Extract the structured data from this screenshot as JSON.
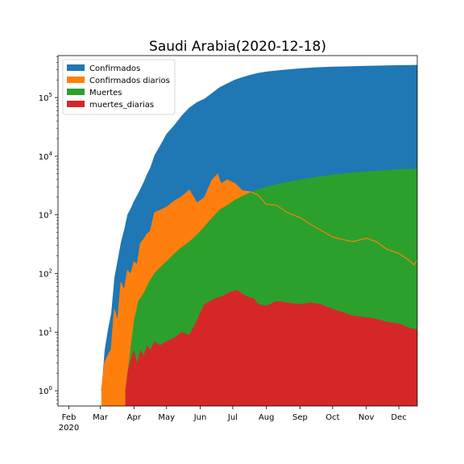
{
  "chart_data": {
    "type": "area",
    "title": "Saudi Arabia(2020-12-18)",
    "xlabel": "",
    "ylabel": "",
    "yscale": "log",
    "ylim": [
      0.55,
      520000
    ],
    "xlim": [
      "2020-01-22",
      "2020-12-18"
    ],
    "x_ticks": [
      {
        "date": "2020-02-01",
        "label": "Feb",
        "sublabel": "2020"
      },
      {
        "date": "2020-03-01",
        "label": "Mar",
        "sublabel": ""
      },
      {
        "date": "2020-04-01",
        "label": "Apr",
        "sublabel": ""
      },
      {
        "date": "2020-05-01",
        "label": "May",
        "sublabel": ""
      },
      {
        "date": "2020-06-01",
        "label": "Jun",
        "sublabel": ""
      },
      {
        "date": "2020-07-01",
        "label": "Jul",
        "sublabel": ""
      },
      {
        "date": "2020-08-01",
        "label": "Aug",
        "sublabel": ""
      },
      {
        "date": "2020-09-01",
        "label": "Sep",
        "sublabel": ""
      },
      {
        "date": "2020-10-01",
        "label": "Oct",
        "sublabel": ""
      },
      {
        "date": "2020-11-01",
        "label": "Nov",
        "sublabel": ""
      },
      {
        "date": "2020-12-01",
        "label": "Dec",
        "sublabel": ""
      }
    ],
    "y_ticks": [
      {
        "value": 1,
        "base": "10",
        "exp": "0"
      },
      {
        "value": 10,
        "base": "10",
        "exp": "1"
      },
      {
        "value": 100,
        "base": "10",
        "exp": "2"
      },
      {
        "value": 1000,
        "base": "10",
        "exp": "3"
      },
      {
        "value": 10000,
        "base": "10",
        "exp": "4"
      },
      {
        "value": 100000,
        "base": "10",
        "exp": "5"
      }
    ],
    "legend_position": "top-left",
    "series": [
      {
        "name": "Confirmados",
        "color": "#1f77b4",
        "style": "area",
        "points": [
          [
            "2020-03-02",
            1
          ],
          [
            "2020-03-05",
            5
          ],
          [
            "2020-03-08",
            11
          ],
          [
            "2020-03-11",
            21
          ],
          [
            "2020-03-14",
            86
          ],
          [
            "2020-03-17",
            171
          ],
          [
            "2020-03-20",
            344
          ],
          [
            "2020-03-23",
            562
          ],
          [
            "2020-03-26",
            1012
          ],
          [
            "2020-03-29",
            1299
          ],
          [
            "2020-04-01",
            1720
          ],
          [
            "2020-04-04",
            2179
          ],
          [
            "2020-04-07",
            2795
          ],
          [
            "2020-04-10",
            3651
          ],
          [
            "2020-04-13",
            4934
          ],
          [
            "2020-04-16",
            6380
          ],
          [
            "2020-04-20",
            10484
          ],
          [
            "2020-04-25",
            15102
          ],
          [
            "2020-05-01",
            24097
          ],
          [
            "2020-05-08",
            33731
          ],
          [
            "2020-05-15",
            49176
          ],
          [
            "2020-05-22",
            67719
          ],
          [
            "2020-05-29",
            83384
          ],
          [
            "2020-06-05",
            95748
          ],
          [
            "2020-06-12",
            119942
          ],
          [
            "2020-06-19",
            150292
          ],
          [
            "2020-06-26",
            174577
          ],
          [
            "2020-07-03",
            201801
          ],
          [
            "2020-07-10",
            223327
          ],
          [
            "2020-07-17",
            243238
          ],
          [
            "2020-07-24",
            262772
          ],
          [
            "2020-08-01",
            277000
          ],
          [
            "2020-08-15",
            295000
          ],
          [
            "2020-09-01",
            315000
          ],
          [
            "2020-09-15",
            327000
          ],
          [
            "2020-10-01",
            336000
          ],
          [
            "2020-10-15",
            341000
          ],
          [
            "2020-11-01",
            347000
          ],
          [
            "2020-11-15",
            352000
          ],
          [
            "2020-12-01",
            357000
          ],
          [
            "2020-12-18",
            360000
          ]
        ]
      },
      {
        "name": "Confirmados diarios",
        "color": "#ff7f0e",
        "style": "area",
        "points": [
          [
            "2020-03-02",
            1
          ],
          [
            "2020-03-05",
            3
          ],
          [
            "2020-03-08",
            4
          ],
          [
            "2020-03-11",
            5
          ],
          [
            "2020-03-14",
            24
          ],
          [
            "2020-03-17",
            15
          ],
          [
            "2020-03-20",
            70
          ],
          [
            "2020-03-23",
            51
          ],
          [
            "2020-03-26",
            112
          ],
          [
            "2020-03-29",
            96
          ],
          [
            "2020-04-01",
            157
          ],
          [
            "2020-04-04",
            140
          ],
          [
            "2020-04-07",
            327
          ],
          [
            "2020-04-10",
            382
          ],
          [
            "2020-04-13",
            472
          ],
          [
            "2020-04-16",
            518
          ],
          [
            "2020-04-20",
            1088
          ],
          [
            "2020-04-25",
            1197
          ],
          [
            "2020-05-01",
            1344
          ],
          [
            "2020-05-08",
            1701
          ],
          [
            "2020-05-15",
            2039
          ],
          [
            "2020-05-22",
            2642
          ],
          [
            "2020-05-29",
            1581
          ],
          [
            "2020-06-05",
            1975
          ],
          [
            "2020-06-12",
            3921
          ],
          [
            "2020-06-17",
            4919
          ],
          [
            "2020-06-20",
            3379
          ],
          [
            "2020-06-26",
            3938
          ],
          [
            "2020-07-03",
            3402
          ],
          [
            "2020-07-10",
            2565
          ],
          [
            "2020-07-17",
            2482
          ],
          [
            "2020-07-24",
            2201
          ],
          [
            "2020-08-01",
            1500
          ],
          [
            "2020-08-10",
            1470
          ],
          [
            "2020-08-20",
            1100
          ],
          [
            "2020-09-01",
            900
          ],
          [
            "2020-09-10",
            700
          ],
          [
            "2020-09-20",
            550
          ],
          [
            "2020-10-01",
            420
          ],
          [
            "2020-10-10",
            380
          ],
          [
            "2020-10-20",
            350
          ],
          [
            "2020-11-01",
            400
          ],
          [
            "2020-11-10",
            350
          ],
          [
            "2020-11-20",
            260
          ],
          [
            "2020-12-01",
            220
          ],
          [
            "2020-12-10",
            170
          ],
          [
            "2020-12-15",
            140
          ],
          [
            "2020-12-18",
            170
          ]
        ]
      },
      {
        "name": "Muertes",
        "color": "#2ca02c",
        "style": "area",
        "points": [
          [
            "2020-03-24",
            1
          ],
          [
            "2020-03-28",
            4
          ],
          [
            "2020-04-01",
            16
          ],
          [
            "2020-04-05",
            34
          ],
          [
            "2020-04-10",
            47
          ],
          [
            "2020-04-15",
            73
          ],
          [
            "2020-04-20",
            103
          ],
          [
            "2020-04-25",
            127
          ],
          [
            "2020-05-01",
            162
          ],
          [
            "2020-05-08",
            219
          ],
          [
            "2020-05-15",
            283
          ],
          [
            "2020-05-22",
            351
          ],
          [
            "2020-05-29",
            458
          ],
          [
            "2020-06-05",
            642
          ],
          [
            "2020-06-12",
            893
          ],
          [
            "2020-06-19",
            1230
          ],
          [
            "2020-06-26",
            1474
          ],
          [
            "2020-07-03",
            1802
          ],
          [
            "2020-07-10",
            2100
          ],
          [
            "2020-07-17",
            2407
          ],
          [
            "2020-07-24",
            2733
          ],
          [
            "2020-08-01",
            3000
          ],
          [
            "2020-08-15",
            3500
          ],
          [
            "2020-09-01",
            4000
          ],
          [
            "2020-09-15",
            4400
          ],
          [
            "2020-10-01",
            4850
          ],
          [
            "2020-10-15",
            5200
          ],
          [
            "2020-11-01",
            5500
          ],
          [
            "2020-11-15",
            5750
          ],
          [
            "2020-12-01",
            6000
          ],
          [
            "2020-12-18",
            6100
          ]
        ]
      },
      {
        "name": "muertes_diarias",
        "color": "#d62728",
        "style": "area",
        "points": [
          [
            "2020-03-24",
            1
          ],
          [
            "2020-03-26",
            2
          ],
          [
            "2020-03-28",
            3
          ],
          [
            "2020-03-30",
            4
          ],
          [
            "2020-04-01",
            5
          ],
          [
            "2020-04-04",
            3
          ],
          [
            "2020-04-07",
            5
          ],
          [
            "2020-04-10",
            4
          ],
          [
            "2020-04-13",
            6
          ],
          [
            "2020-04-16",
            5
          ],
          [
            "2020-04-20",
            7
          ],
          [
            "2020-04-25",
            6
          ],
          [
            "2020-05-01",
            7
          ],
          [
            "2020-05-08",
            8
          ],
          [
            "2020-05-15",
            10
          ],
          [
            "2020-05-22",
            9
          ],
          [
            "2020-05-29",
            16
          ],
          [
            "2020-06-01",
            22
          ],
          [
            "2020-06-05",
            30
          ],
          [
            "2020-06-10",
            34
          ],
          [
            "2020-06-15",
            38
          ],
          [
            "2020-06-20",
            40
          ],
          [
            "2020-06-25",
            45
          ],
          [
            "2020-07-01",
            50
          ],
          [
            "2020-07-05",
            52
          ],
          [
            "2020-07-10",
            45
          ],
          [
            "2020-07-15",
            40
          ],
          [
            "2020-07-20",
            38
          ],
          [
            "2020-07-25",
            30
          ],
          [
            "2020-08-01",
            28
          ],
          [
            "2020-08-10",
            34
          ],
          [
            "2020-08-20",
            32
          ],
          [
            "2020-09-01",
            30
          ],
          [
            "2020-09-10",
            32
          ],
          [
            "2020-09-20",
            30
          ],
          [
            "2020-10-01",
            25
          ],
          [
            "2020-10-10",
            22
          ],
          [
            "2020-10-20",
            19
          ],
          [
            "2020-11-01",
            18
          ],
          [
            "2020-11-10",
            17
          ],
          [
            "2020-11-20",
            15
          ],
          [
            "2020-12-01",
            14
          ],
          [
            "2020-12-10",
            12
          ],
          [
            "2020-12-18",
            11
          ]
        ]
      }
    ]
  }
}
